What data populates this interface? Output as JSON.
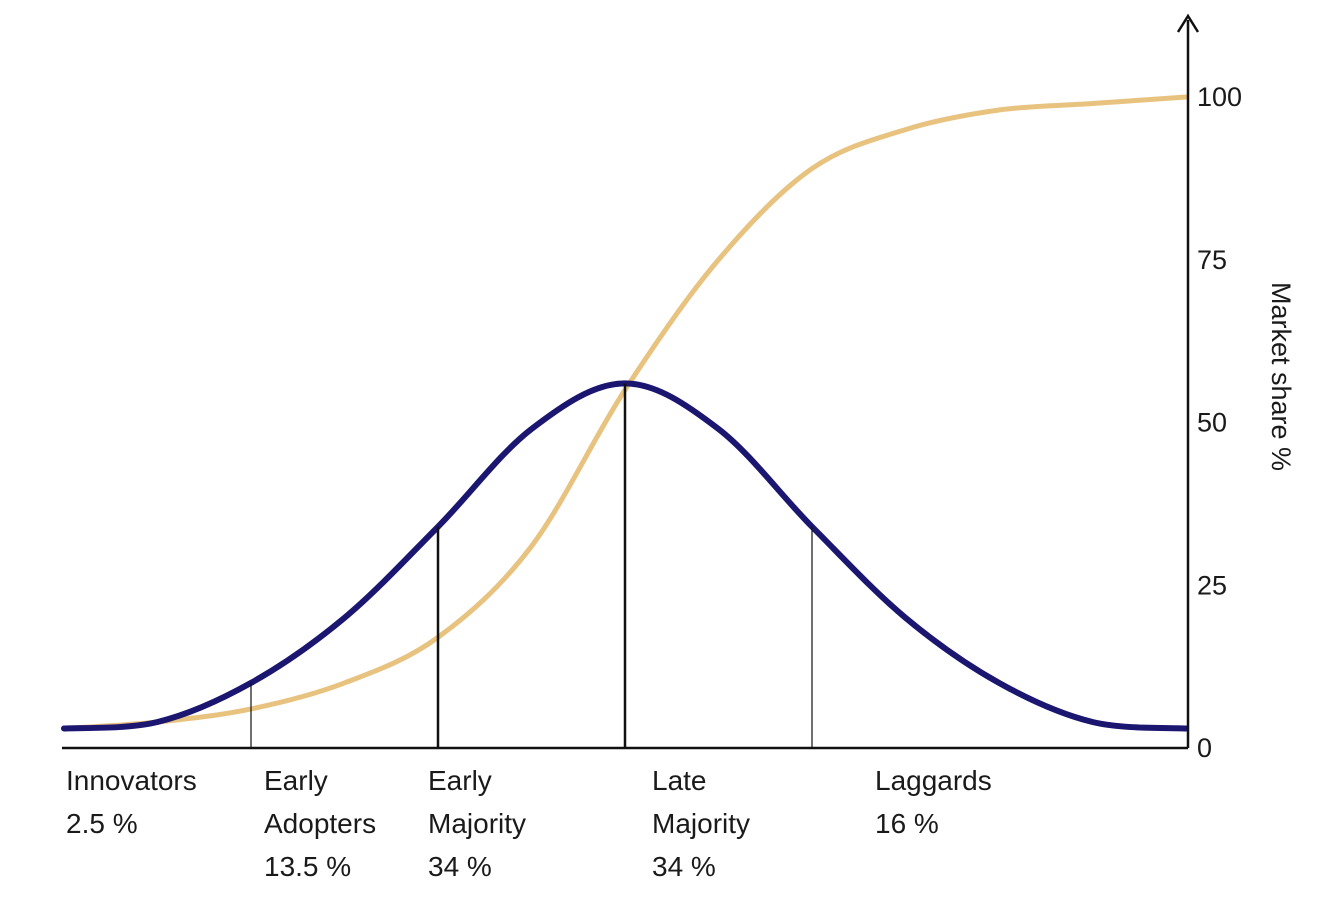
{
  "chart_data": {
    "type": "line",
    "title": "",
    "xlabel": "",
    "ylabel": "Market share %",
    "ylim": [
      0,
      100
    ],
    "yticks": [
      "0",
      "25",
      "50",
      "75",
      "100"
    ],
    "grid": false,
    "legend": "none",
    "series": [
      {
        "color": "#e8c27f",
        "x": [
          -3.0,
          -2.5,
          -2.0,
          -1.5,
          -1.0,
          -0.5,
          0.0,
          0.5,
          1.0,
          1.5,
          2.0,
          2.5,
          3.0
        ],
        "values": [
          3,
          4,
          6,
          10,
          17,
          31,
          55,
          75,
          89,
          95,
          98,
          99,
          100
        ]
      },
      {
        "color": "#1b1670",
        "x": [
          -3.0,
          -2.5,
          -2.0,
          -1.5,
          -1.0,
          -0.5,
          0.0,
          0.5,
          1.0,
          1.5,
          2.0,
          2.5,
          3.0
        ],
        "values": [
          3,
          4,
          10,
          20,
          34,
          49,
          56,
          49,
          34,
          20,
          10,
          4,
          3
        ]
      }
    ],
    "dividers_x": [
      -2,
      -1,
      0,
      1
    ],
    "segments": [
      {
        "name": "Innovators",
        "share": "2.5 %"
      },
      {
        "name_lines": [
          "Early",
          "Adopters"
        ],
        "share": "13.5 %"
      },
      {
        "name_lines": [
          "Early",
          "Majority"
        ],
        "share": "34 %"
      },
      {
        "name_lines": [
          "Late",
          "Majority"
        ],
        "share": "34 %"
      },
      {
        "name": "Laggards",
        "share": "16 %"
      }
    ]
  }
}
